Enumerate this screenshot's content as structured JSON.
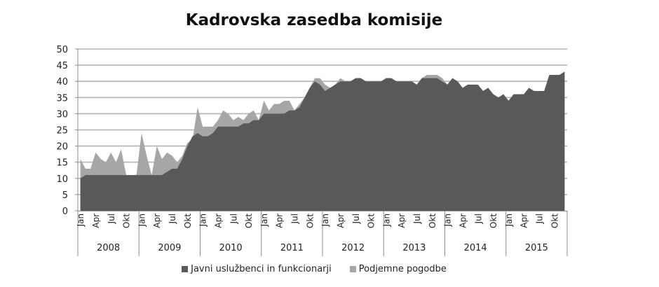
{
  "chart_data": {
    "type": "area",
    "stacked": false,
    "title": "Kadrovska zasedba komisije",
    "xlabel": "",
    "ylabel": "",
    "ylim": [
      0,
      50
    ],
    "yticks": [
      0,
      5,
      10,
      15,
      20,
      25,
      30,
      35,
      40,
      45,
      50
    ],
    "grid": true,
    "legend_position": "bottom",
    "years": [
      "2008",
      "2009",
      "2010",
      "2011",
      "2012",
      "2013",
      "2014",
      "2015"
    ],
    "month_tick_labels": [
      "Jan",
      "Apr",
      "Jul",
      "Okt"
    ],
    "series": [
      {
        "name": "Podjemne pogodbe",
        "color": "#a6a6a6",
        "note": "total (upper envelope) per month",
        "values": [
          16,
          13,
          13,
          18,
          16,
          15,
          18,
          15,
          19,
          11,
          11,
          11,
          24,
          17,
          11,
          20,
          16,
          18,
          17,
          15,
          17,
          21,
          22,
          32,
          26,
          26,
          26,
          28,
          31,
          30,
          28,
          29,
          28,
          30,
          31,
          28,
          34,
          31,
          33,
          33,
          34,
          34,
          31,
          33,
          35,
          38,
          41,
          41,
          39,
          38,
          39,
          41,
          40,
          40,
          41,
          41,
          40,
          40,
          40,
          40,
          41,
          41,
          40,
          40,
          40,
          40,
          39,
          41,
          42,
          42,
          42,
          41,
          39,
          41,
          40,
          38,
          39,
          39,
          39,
          37,
          38,
          36,
          35,
          36,
          34,
          36,
          36,
          36,
          38,
          37,
          37,
          37,
          42,
          42,
          42,
          43
        ]
      },
      {
        "name": "Javni uslužbenci in funkcionarji",
        "color": "#595959",
        "values": [
          10,
          11,
          11,
          11,
          11,
          11,
          11,
          11,
          11,
          11,
          11,
          11,
          11,
          11,
          11,
          11,
          11,
          12,
          13,
          13,
          16,
          20,
          23,
          24,
          23,
          23,
          24,
          26,
          26,
          26,
          26,
          26,
          27,
          27,
          28,
          28,
          30,
          30,
          30,
          30,
          30,
          31,
          31,
          32,
          35,
          38,
          40,
          39,
          37,
          38,
          39,
          40,
          40,
          40,
          41,
          41,
          40,
          40,
          40,
          40,
          41,
          41,
          40,
          40,
          40,
          40,
          39,
          41,
          41,
          41,
          41,
          40,
          39,
          41,
          40,
          38,
          39,
          39,
          39,
          37,
          38,
          36,
          35,
          36,
          34,
          36,
          36,
          36,
          38,
          37,
          37,
          37,
          42,
          42,
          42,
          43
        ]
      }
    ]
  },
  "legend": {
    "items": [
      {
        "label": "Javni uslužbenci in funkcionarji",
        "color": "#595959"
      },
      {
        "label": "Podjemne pogodbe",
        "color": "#a6a6a6"
      }
    ]
  }
}
